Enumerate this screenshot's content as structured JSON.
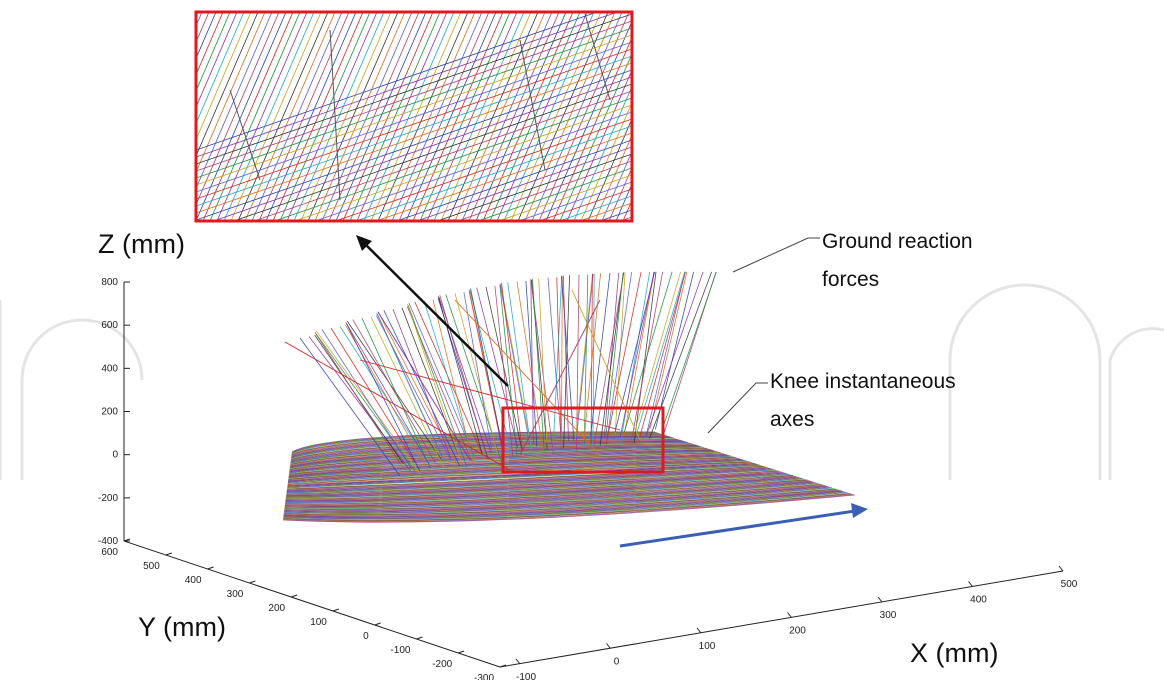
{
  "chart_data": {
    "type": "3d-line-field",
    "x_axis": {
      "label": "X (mm)",
      "range": [
        -100,
        500
      ],
      "tick_labels": [
        "-100",
        "0",
        "100",
        "200",
        "300",
        "400",
        "500"
      ]
    },
    "y_axis": {
      "label": "Y (mm)",
      "range": [
        -300,
        600
      ],
      "tick_labels": [
        "-300",
        "-200",
        "-100",
        "0",
        "100",
        "200",
        "300",
        "400",
        "500",
        "600"
      ]
    },
    "z_axis": {
      "label": "Z (mm)",
      "range": [
        -400,
        800
      ],
      "tick_labels": [
        "-400",
        "-200",
        "0",
        "200",
        "400",
        "600",
        "800"
      ]
    },
    "grid": false,
    "legend": "none",
    "annotations": [
      {
        "lines": [
          "Ground reaction",
          "forces"
        ]
      },
      {
        "lines": [
          "Knee instantaneous",
          "axes"
        ]
      }
    ],
    "series": [],
    "colors": {
      "highlight_box": "#e0191e",
      "direction_arrow": "#3a5fb5",
      "zoom_arrow": "#111111",
      "watermark": "#e4e4e4",
      "line_palette": [
        "#2a3fb0",
        "#d42424",
        "#1f8f3a",
        "#8b2fa8",
        "#1ea7c4",
        "#c8a21a",
        "#333333",
        "#e06a1a",
        "#5a5ad6",
        "#b03a6a"
      ]
    }
  }
}
